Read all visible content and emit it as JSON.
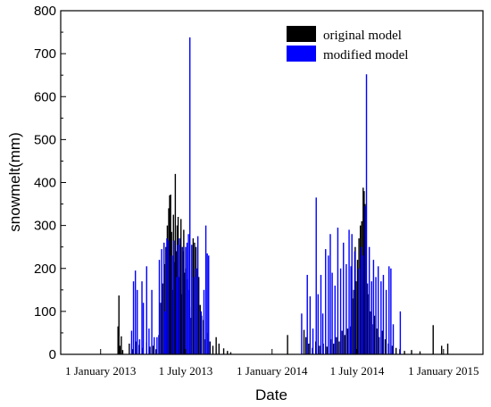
{
  "chart_data": {
    "type": "bar",
    "title": "",
    "xlabel": "Date",
    "ylabel": "snowmelt(mm)",
    "ylim": [
      0,
      800
    ],
    "y_ticks": [
      0,
      100,
      200,
      300,
      400,
      500,
      600,
      700,
      800
    ],
    "xlim": [
      "2012-10-08",
      "2015-03-26"
    ],
    "x_ticks": [
      {
        "date": "2013-01-01",
        "label": "1 January 2013"
      },
      {
        "date": "2013-07-01",
        "label": "1 July 2013"
      },
      {
        "date": "2014-01-01",
        "label": "1 January 2014"
      },
      {
        "date": "2014-07-01",
        "label": "1 July 2014"
      },
      {
        "date": "2015-01-01",
        "label": "1 January 2015"
      }
    ],
    "grid": false,
    "legend_position": "top-right",
    "series": [
      {
        "name": "original model",
        "color": "#000000",
        "points": [
          [
            "2013-02-07",
            65
          ],
          [
            "2013-02-09",
            137
          ],
          [
            "2013-02-11",
            20
          ],
          [
            "2013-02-14",
            42
          ],
          [
            "2013-02-17",
            10
          ],
          [
            "2013-03-03",
            25
          ],
          [
            "2013-03-10",
            12
          ],
          [
            "2013-03-17",
            30
          ],
          [
            "2013-03-24",
            22
          ],
          [
            "2013-04-01",
            15
          ],
          [
            "2013-04-09",
            28
          ],
          [
            "2013-04-16",
            18
          ],
          [
            "2013-04-23",
            20
          ],
          [
            "2013-04-29",
            12
          ],
          [
            "2013-05-05",
            45
          ],
          [
            "2013-05-09",
            120
          ],
          [
            "2013-05-13",
            165
          ],
          [
            "2013-05-17",
            210
          ],
          [
            "2013-05-20",
            250
          ],
          [
            "2013-05-23",
            300
          ],
          [
            "2013-05-26",
            340
          ],
          [
            "2013-05-28",
            370
          ],
          [
            "2013-05-30",
            372
          ],
          [
            "2013-06-01",
            285
          ],
          [
            "2013-06-03",
            150
          ],
          [
            "2013-06-05",
            325
          ],
          [
            "2013-06-07",
            215
          ],
          [
            "2013-06-09",
            420
          ],
          [
            "2013-06-11",
            240
          ],
          [
            "2013-06-13",
            300
          ],
          [
            "2013-06-15",
            320
          ],
          [
            "2013-06-17",
            180
          ],
          [
            "2013-06-19",
            255
          ],
          [
            "2013-06-21",
            315
          ],
          [
            "2013-06-23",
            140
          ],
          [
            "2013-06-25",
            240
          ],
          [
            "2013-06-27",
            290
          ],
          [
            "2013-06-29",
            190
          ],
          [
            "2013-07-01",
            200
          ],
          [
            "2013-07-04",
            175
          ],
          [
            "2013-07-07",
            150
          ],
          [
            "2013-07-10",
            110
          ],
          [
            "2013-07-13",
            85
          ],
          [
            "2013-07-17",
            270
          ],
          [
            "2013-07-20",
            260
          ],
          [
            "2013-07-23",
            250
          ],
          [
            "2013-07-26",
            200
          ],
          [
            "2013-07-29",
            180
          ],
          [
            "2013-08-01",
            115
          ],
          [
            "2013-08-04",
            90
          ],
          [
            "2013-08-08",
            80
          ],
          [
            "2013-08-12",
            35
          ],
          [
            "2013-08-16",
            50
          ],
          [
            "2013-08-22",
            30
          ],
          [
            "2013-08-28",
            20
          ],
          [
            "2013-09-04",
            40
          ],
          [
            "2013-09-10",
            25
          ],
          [
            "2013-09-20",
            14
          ],
          [
            "2013-09-28",
            8
          ],
          [
            "2013-10-05",
            5
          ],
          [
            "2014-02-03",
            45
          ],
          [
            "2014-03-10",
            57
          ],
          [
            "2014-03-14",
            40
          ],
          [
            "2014-03-20",
            25
          ],
          [
            "2014-03-28",
            15
          ],
          [
            "2014-04-04",
            30
          ],
          [
            "2014-04-12",
            20
          ],
          [
            "2014-04-20",
            25
          ],
          [
            "2014-04-28",
            18
          ],
          [
            "2014-05-06",
            35
          ],
          [
            "2014-05-12",
            25
          ],
          [
            "2014-05-18",
            40
          ],
          [
            "2014-05-24",
            30
          ],
          [
            "2014-05-30",
            55
          ],
          [
            "2014-06-05",
            45
          ],
          [
            "2014-06-11",
            60
          ],
          [
            "2014-06-17",
            65
          ],
          [
            "2014-06-21",
            130
          ],
          [
            "2014-06-24",
            150
          ],
          [
            "2014-06-27",
            250
          ],
          [
            "2014-06-29",
            170
          ],
          [
            "2014-07-02",
            220
          ],
          [
            "2014-07-05",
            270
          ],
          [
            "2014-07-08",
            300
          ],
          [
            "2014-07-11",
            310
          ],
          [
            "2014-07-14",
            388
          ],
          [
            "2014-07-16",
            380
          ],
          [
            "2014-07-18",
            350
          ],
          [
            "2014-07-20",
            265
          ],
          [
            "2014-07-23",
            165
          ],
          [
            "2014-07-26",
            140
          ],
          [
            "2014-07-29",
            100
          ],
          [
            "2014-08-02",
            70
          ],
          [
            "2014-08-07",
            90
          ],
          [
            "2014-08-12",
            60
          ],
          [
            "2014-08-17",
            40
          ],
          [
            "2014-08-24",
            55
          ],
          [
            "2014-08-30",
            35
          ],
          [
            "2014-09-06",
            25
          ],
          [
            "2014-09-14",
            20
          ],
          [
            "2014-09-22",
            15
          ],
          [
            "2014-09-30",
            12
          ],
          [
            "2014-10-10",
            8
          ],
          [
            "2014-10-25",
            10
          ],
          [
            "2014-11-12",
            7
          ],
          [
            "2014-12-10",
            68
          ],
          [
            "2014-12-28",
            20
          ],
          [
            "2015-01-10",
            25
          ]
        ]
      },
      {
        "name": "modified model",
        "color": "#0000ff",
        "points": [
          [
            "2013-03-08",
            55
          ],
          [
            "2013-03-12",
            170
          ],
          [
            "2013-03-16",
            195
          ],
          [
            "2013-03-20",
            150
          ],
          [
            "2013-03-25",
            35
          ],
          [
            "2013-04-02",
            120
          ],
          [
            "2013-04-09",
            205
          ],
          [
            "2013-04-14",
            60
          ],
          [
            "2013-04-20",
            150
          ],
          [
            "2013-04-25",
            40
          ],
          [
            "2013-05-01",
            40
          ],
          [
            "2013-05-06",
            220
          ],
          [
            "2013-05-11",
            245
          ],
          [
            "2013-05-16",
            260
          ],
          [
            "2013-05-19",
            100
          ],
          [
            "2013-05-22",
            270
          ],
          [
            "2013-05-25",
            265
          ],
          [
            "2013-06-02",
            230
          ],
          [
            "2013-06-06",
            265
          ],
          [
            "2013-06-12",
            180
          ],
          [
            "2013-06-14",
            255
          ],
          [
            "2013-06-18",
            270
          ],
          [
            "2013-06-24",
            250
          ],
          [
            "2013-07-01",
            250
          ],
          [
            "2013-07-04",
            260
          ],
          [
            "2013-07-07",
            280
          ],
          [
            "2013-07-10",
            738
          ],
          [
            "2013-07-14",
            255
          ],
          [
            "2013-07-19",
            180
          ],
          [
            "2013-07-23",
            200
          ],
          [
            "2013-07-27",
            275
          ],
          [
            "2013-08-03",
            100
          ],
          [
            "2013-08-09",
            150
          ],
          [
            "2013-08-13",
            300
          ],
          [
            "2013-08-16",
            235
          ],
          [
            "2013-08-19",
            230
          ],
          [
            "2013-03-30",
            170
          ],
          [
            "2014-03-05",
            95
          ],
          [
            "2014-03-17",
            185
          ],
          [
            "2014-03-23",
            135
          ],
          [
            "2014-03-29",
            60
          ],
          [
            "2014-04-05",
            365
          ],
          [
            "2014-04-09",
            140
          ],
          [
            "2014-04-15",
            185
          ],
          [
            "2014-04-19",
            95
          ],
          [
            "2014-04-25",
            245
          ],
          [
            "2014-05-01",
            230
          ],
          [
            "2014-05-05",
            280
          ],
          [
            "2014-05-09",
            190
          ],
          [
            "2014-05-15",
            160
          ],
          [
            "2014-05-21",
            295
          ],
          [
            "2014-05-27",
            200
          ],
          [
            "2014-06-02",
            260
          ],
          [
            "2014-06-08",
            210
          ],
          [
            "2014-06-14",
            290
          ],
          [
            "2014-06-18",
            205
          ],
          [
            "2014-06-20",
            280
          ],
          [
            "2014-06-26",
            240
          ],
          [
            "2014-07-04",
            200
          ],
          [
            "2014-07-10",
            250
          ],
          [
            "2014-07-13",
            230
          ],
          [
            "2014-07-19",
            345
          ],
          [
            "2014-07-21",
            652
          ],
          [
            "2014-07-27",
            250
          ],
          [
            "2014-08-01",
            170
          ],
          [
            "2014-08-05",
            220
          ],
          [
            "2014-08-10",
            180
          ],
          [
            "2014-08-15",
            205
          ],
          [
            "2014-08-21",
            170
          ],
          [
            "2014-08-26",
            185
          ],
          [
            "2014-09-01",
            150
          ],
          [
            "2014-09-07",
            205
          ],
          [
            "2014-09-11",
            200
          ],
          [
            "2014-09-16",
            70
          ],
          [
            "2014-10-01",
            100
          ]
        ]
      }
    ]
  }
}
